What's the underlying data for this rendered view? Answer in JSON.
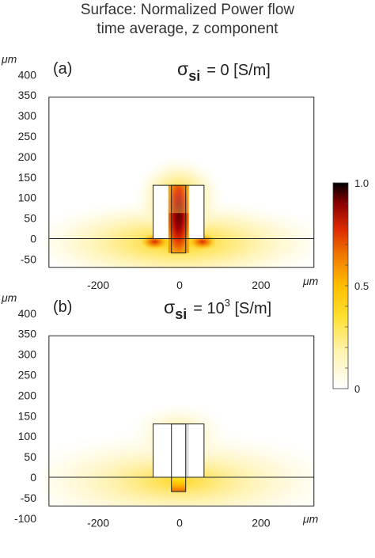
{
  "figure": {
    "title_line1": "Surface: Normalized Power flow",
    "title_line2": "time average, z component"
  },
  "colorbar": {
    "ticks": [
      "1.0",
      "0.5",
      "0"
    ],
    "tick_values": [
      1.0,
      0.5,
      0.0
    ],
    "colors": [
      "#ffffff",
      "#fff7c0",
      "#ffe33a",
      "#ffc400",
      "#f07a00",
      "#e02a00",
      "#a00000",
      "#3a0000",
      "#000000"
    ]
  },
  "axes": {
    "unit": "μm",
    "y_ticks": [
      400,
      350,
      300,
      250,
      200,
      150,
      100,
      50,
      0,
      -50,
      -100
    ],
    "x_ticks": [
      -200,
      0,
      200
    ],
    "xlim": [
      -320,
      330
    ],
    "ylim": [
      -130,
      450
    ]
  },
  "chart_data": [
    {
      "type": "heatmap",
      "panel": "(a)",
      "label_sigma": "σ",
      "label_sub": "si",
      "label_rest": "= 0 [S/m]",
      "title": "",
      "xlabel": "μm",
      "ylabel": "μm",
      "x_ticks": [
        -200,
        0,
        200
      ],
      "y_ticks": [
        400,
        350,
        300,
        250,
        200,
        150,
        100,
        50,
        0,
        -50
      ],
      "xlim": [
        -320,
        330
      ],
      "ylim": [
        -75,
        450
      ],
      "domain_box": {
        "x": [
          -320,
          330
        ],
        "y": [
          -70,
          345
        ]
      },
      "structures": [
        {
          "name": "waveguide",
          "x": [
            -65,
            60
          ],
          "y": [
            0,
            130
          ]
        },
        {
          "name": "core",
          "x": [
            -20,
            15
          ],
          "y": [
            -35,
            130
          ]
        }
      ],
      "max_value": 1.0,
      "hotspot": {
        "x": 0,
        "y": 60,
        "value": 1.0
      }
    },
    {
      "type": "heatmap",
      "panel": "(b)",
      "label_sigma": "σ",
      "label_sub": "si",
      "label_rest_pre": "= 10",
      "label_exp": "3",
      "label_rest_post": " [S/m]",
      "title": "",
      "xlabel": "μm",
      "ylabel": "μm",
      "x_ticks": [
        -200,
        0,
        200
      ],
      "y_ticks": [
        400,
        350,
        300,
        250,
        200,
        150,
        100,
        50,
        0,
        -50,
        -100
      ],
      "xlim": [
        -320,
        330
      ],
      "ylim": [
        -130,
        450
      ],
      "domain_box": {
        "x": [
          -320,
          330
        ],
        "y": [
          -70,
          345
        ]
      },
      "structures": [
        {
          "name": "waveguide",
          "x": [
            -65,
            60
          ],
          "y": [
            0,
            130
          ]
        },
        {
          "name": "core",
          "x": [
            -20,
            15
          ],
          "y": [
            -35,
            130
          ]
        }
      ],
      "max_value": 0.55,
      "hotspot": {
        "x": 0,
        "y": -15,
        "value": 0.55
      }
    }
  ]
}
